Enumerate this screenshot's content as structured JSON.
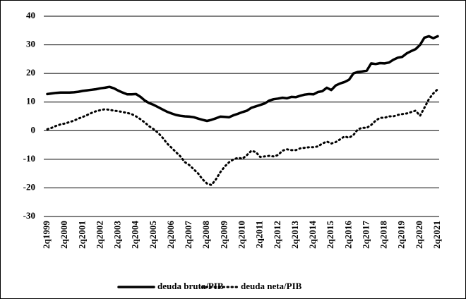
{
  "chart_data": {
    "type": "line",
    "categories": [
      "2q1999",
      null,
      null,
      null,
      "2q2000",
      null,
      null,
      null,
      "2q2001",
      null,
      null,
      null,
      "2q2002",
      null,
      null,
      null,
      "2q2003",
      null,
      null,
      null,
      "2q2004",
      null,
      null,
      null,
      "2q2005",
      null,
      null,
      null,
      "2q2006",
      null,
      null,
      null,
      "2q2007",
      null,
      null,
      null,
      "2q2008",
      null,
      null,
      null,
      "2q2009",
      null,
      null,
      null,
      "2q2010",
      null,
      null,
      null,
      "2q2011",
      null,
      null,
      null,
      "2q2012",
      null,
      null,
      null,
      "2q2013",
      null,
      null,
      null,
      "2q2014",
      null,
      null,
      null,
      "2q2015",
      null,
      null,
      null,
      "2q2016",
      null,
      null,
      null,
      "2q2017",
      null,
      null,
      null,
      "2q2018",
      null,
      null,
      null,
      "2q2019",
      null,
      null,
      null,
      "2q2020",
      null,
      null,
      null,
      "2q2021"
    ],
    "series": [
      {
        "name": "deuda bruta/PIB",
        "color": "#000000",
        "line_style": "solid",
        "values": [
          12.8,
          13.0,
          13.2,
          13.3,
          13.3,
          13.3,
          13.4,
          13.6,
          13.9,
          14.1,
          14.3,
          14.5,
          14.8,
          15.0,
          15.3,
          14.8,
          14.0,
          13.3,
          12.7,
          12.7,
          12.8,
          11.8,
          10.5,
          9.6,
          9.0,
          8.2,
          7.4,
          6.6,
          6.0,
          5.5,
          5.2,
          5.0,
          4.9,
          4.7,
          4.2,
          3.8,
          3.4,
          3.8,
          4.3,
          4.9,
          4.8,
          4.7,
          5.4,
          5.9,
          6.5,
          7.0,
          8.0,
          8.5,
          9.0,
          9.5,
          10.5,
          11.0,
          11.2,
          11.5,
          11.3,
          11.8,
          11.7,
          12.2,
          12.6,
          12.8,
          12.7,
          13.5,
          13.8,
          15.0,
          14.2,
          15.8,
          16.5,
          17.0,
          17.8,
          20.0,
          20.5,
          20.7,
          21.0,
          23.5,
          23.3,
          23.6,
          23.5,
          23.8,
          24.8,
          25.5,
          25.8,
          27.0,
          27.8,
          28.5,
          30.0,
          32.5,
          33.0,
          32.3,
          33.0
        ]
      },
      {
        "name": "deuda neta/PIB",
        "color": "#000000",
        "line_style": "dotted",
        "values": [
          0.5,
          1.0,
          1.7,
          2.2,
          2.5,
          3.0,
          3.5,
          4.2,
          4.8,
          5.5,
          6.2,
          6.8,
          7.2,
          7.5,
          7.3,
          7.0,
          6.8,
          6.5,
          6.2,
          5.8,
          5.0,
          4.0,
          2.8,
          1.5,
          0.5,
          -0.8,
          -2.5,
          -4.5,
          -6.0,
          -7.5,
          -9.0,
          -11.0,
          -12.0,
          -13.5,
          -15.0,
          -17.0,
          -18.5,
          -19.0,
          -17.0,
          -14.5,
          -12.5,
          -11.0,
          -10.0,
          -9.5,
          -9.8,
          -8.5,
          -7.0,
          -7.5,
          -9.2,
          -9.0,
          -8.8,
          -9.0,
          -8.5,
          -7.0,
          -6.5,
          -6.8,
          -6.8,
          -6.2,
          -6.0,
          -5.8,
          -5.8,
          -5.5,
          -4.5,
          -3.8,
          -4.5,
          -4.0,
          -3.0,
          -2.0,
          -2.5,
          -1.5,
          0.5,
          1.0,
          1.0,
          2.0,
          3.5,
          4.5,
          4.5,
          5.0,
          5.0,
          5.5,
          5.8,
          6.0,
          6.5,
          7.0,
          5.2,
          8.0,
          11.0,
          13.0,
          14.5
        ]
      }
    ],
    "ylim": [
      -30,
      40
    ],
    "yticks": [
      -30,
      -20,
      -10,
      0,
      10,
      20,
      30,
      40
    ],
    "grid": true,
    "legend": "bottom"
  }
}
